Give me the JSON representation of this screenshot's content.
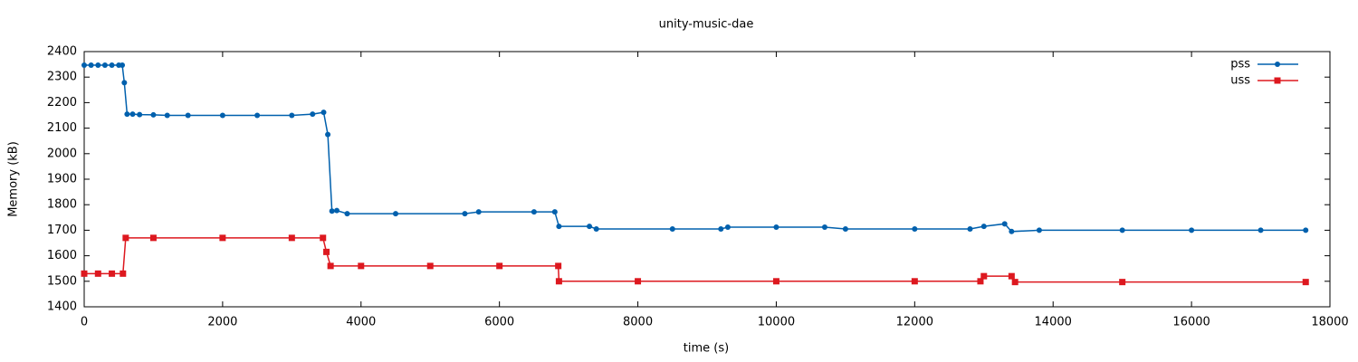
{
  "chart_data": {
    "type": "line",
    "title": "unity-music-dae",
    "xlabel": "time (s)",
    "ylabel": "Memory (kB)",
    "xlim": [
      0,
      18000
    ],
    "xticks": [
      0,
      2000,
      4000,
      6000,
      8000,
      10000,
      12000,
      14000,
      16000,
      18000
    ],
    "ylim": [
      1400,
      2400
    ],
    "yticks": [
      1400,
      1500,
      1600,
      1700,
      1800,
      1900,
      2000,
      2100,
      2200,
      2300,
      2400
    ],
    "grid": false,
    "legend": "top-right",
    "series": [
      {
        "name": "pss",
        "color": "#0060ad",
        "marker": "circle",
        "x": [
          0,
          100,
          200,
          300,
          400,
          500,
          550,
          580,
          620,
          700,
          800,
          1000,
          1200,
          1500,
          2000,
          2500,
          3000,
          3300,
          3460,
          3520,
          3580,
          3650,
          3800,
          4500,
          5500,
          5700,
          6500,
          6800,
          6860,
          7300,
          7400,
          8500,
          9200,
          9300,
          10000,
          10700,
          11000,
          12000,
          12800,
          13000,
          13300,
          13400,
          13800,
          15000,
          16000,
          17000,
          17650
        ],
        "values": [
          2347,
          2347,
          2347,
          2347,
          2347,
          2347,
          2347,
          2278,
          2155,
          2155,
          2153,
          2152,
          2150,
          2150,
          2150,
          2150,
          2150,
          2155,
          2162,
          2075,
          1775,
          1777,
          1765,
          1765,
          1765,
          1772,
          1772,
          1772,
          1715,
          1715,
          1705,
          1705,
          1705,
          1712,
          1712,
          1712,
          1705,
          1705,
          1705,
          1715,
          1725,
          1695,
          1700,
          1700,
          1700,
          1700,
          1700
        ]
      },
      {
        "name": "uss",
        "color": "#dd181f",
        "marker": "square",
        "x": [
          0,
          200,
          400,
          560,
          600,
          1000,
          2000,
          3000,
          3450,
          3500,
          3560,
          4000,
          5000,
          6000,
          6850,
          6860,
          8000,
          10000,
          12000,
          12950,
          13000,
          13400,
          13450,
          15000,
          17650
        ],
        "values": [
          1530,
          1530,
          1530,
          1530,
          1670,
          1670,
          1670,
          1670,
          1670,
          1615,
          1560,
          1560,
          1560,
          1560,
          1560,
          1500,
          1500,
          1500,
          1500,
          1500,
          1520,
          1520,
          1497,
          1497,
          1497
        ]
      }
    ]
  }
}
